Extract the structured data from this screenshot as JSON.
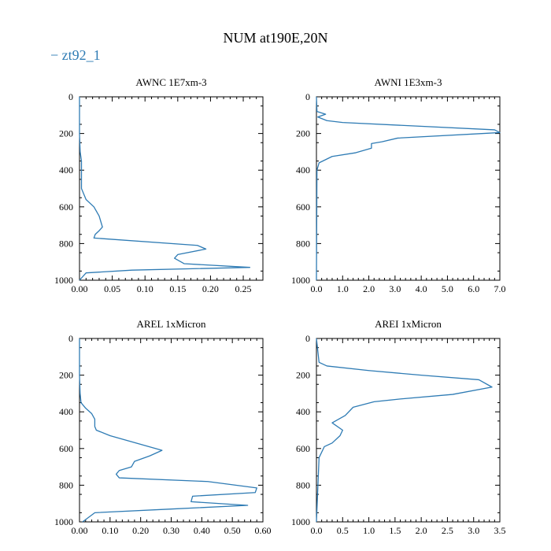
{
  "figure_title": "NUM at190E,20N",
  "legend": {
    "label": "zt92_1",
    "marker": "−",
    "color": "#2e7bb4"
  },
  "chart_data": [
    {
      "type": "line",
      "title": "AWNC  1E7xm-3",
      "xlim": [
        0,
        0.28
      ],
      "ylim": [
        1000,
        0
      ],
      "xticks": [
        0,
        0.05,
        0.1,
        0.15,
        0.2,
        0.25
      ],
      "xtick_labels": [
        "0.00",
        "0.05",
        "0.10",
        "0.15",
        "0.20",
        "0.25"
      ],
      "yticks": [
        0,
        200,
        400,
        600,
        800,
        1000
      ],
      "ytick_labels": [
        "0",
        "200",
        "400",
        "600",
        "800",
        "1000"
      ],
      "series": [
        {
          "name": "zt92_1",
          "x": [
            0,
            0,
            0.001,
            0.003,
            0.003,
            0.003,
            0.01,
            0.022,
            0.03,
            0.035,
            0.03,
            0.024,
            0.022,
            0.18,
            0.193,
            0.15,
            0.145,
            0.16,
            0.26,
            0.08,
            0.01,
            0
          ],
          "y": [
            0,
            200,
            300,
            350,
            400,
            500,
            560,
            600,
            650,
            710,
            730,
            750,
            770,
            810,
            830,
            860,
            880,
            910,
            930,
            945,
            960,
            1000
          ]
        }
      ]
    },
    {
      "type": "line",
      "title": "AWNI  1E3xm-3",
      "xlim": [
        0,
        7.0
      ],
      "ylim": [
        1000,
        0
      ],
      "xticks": [
        0,
        1,
        2,
        3,
        4,
        5,
        6,
        7
      ],
      "xtick_labels": [
        "0.0",
        "1.0",
        "2.0",
        "3.0",
        "4.0",
        "5.0",
        "6.0",
        "7.0"
      ],
      "yticks": [
        0,
        200,
        400,
        600,
        800,
        1000
      ],
      "ytick_labels": [
        "0",
        "200",
        "400",
        "600",
        "800",
        "1000"
      ],
      "series": [
        {
          "name": "zt92_1",
          "x": [
            0,
            0.02,
            0.35,
            0.05,
            0.4,
            1.0,
            6.8,
            7.0,
            3.1,
            2.5,
            2.1,
            2.1,
            1.5,
            0.6,
            0.1,
            0.02,
            0
          ],
          "y": [
            0,
            80,
            95,
            110,
            130,
            140,
            180,
            195,
            225,
            245,
            255,
            280,
            305,
            325,
            360,
            400,
            1000
          ]
        }
      ]
    },
    {
      "type": "line",
      "title": "AREL  1xMicron",
      "xlim": [
        0,
        0.6
      ],
      "ylim": [
        1000,
        0
      ],
      "xticks": [
        0,
        0.1,
        0.2,
        0.3,
        0.4,
        0.5,
        0.6
      ],
      "xtick_labels": [
        "0.00",
        "0.10",
        "0.20",
        "0.30",
        "0.40",
        "0.50",
        "0.60"
      ],
      "yticks": [
        0,
        200,
        400,
        600,
        800,
        1000
      ],
      "ytick_labels": [
        "0",
        "200",
        "400",
        "600",
        "800",
        "1000"
      ],
      "series": [
        {
          "name": "zt92_1",
          "x": [
            0,
            0,
            0.002,
            0.005,
            0.02,
            0.04,
            0.05,
            0.05,
            0.055,
            0.1,
            0.27,
            0.23,
            0.18,
            0.17,
            0.13,
            0.12,
            0.13,
            0.42,
            0.58,
            0.575,
            0.37,
            0.365,
            0.55,
            0.3,
            0.05,
            0.01
          ],
          "y": [
            0,
            200,
            300,
            350,
            380,
            410,
            440,
            480,
            500,
            530,
            610,
            640,
            670,
            700,
            720,
            740,
            760,
            780,
            815,
            840,
            860,
            890,
            910,
            930,
            950,
            1000
          ]
        }
      ]
    },
    {
      "type": "line",
      "title": "AREI  1xMicron",
      "xlim": [
        0,
        3.5
      ],
      "ylim": [
        1000,
        0
      ],
      "xticks": [
        0,
        0.5,
        1,
        1.5,
        2,
        2.5,
        3,
        3.5
      ],
      "xtick_labels": [
        "0.0",
        "0.5",
        "1.0",
        "1.5",
        "2.0",
        "2.5",
        "3.0",
        "3.5"
      ],
      "yticks": [
        0,
        200,
        400,
        600,
        800,
        1000
      ],
      "ytick_labels": [
        "0",
        "200",
        "400",
        "600",
        "800",
        "1000"
      ],
      "series": [
        {
          "name": "zt92_1",
          "x": [
            0,
            0.05,
            0.2,
            1.0,
            2.0,
            3.1,
            3.35,
            2.6,
            1.6,
            1.1,
            0.7,
            0.55,
            0.3,
            0.5,
            0.45,
            0.3,
            0.15,
            0.05,
            0
          ],
          "y": [
            0,
            130,
            150,
            175,
            200,
            225,
            265,
            305,
            330,
            345,
            375,
            420,
            460,
            500,
            530,
            570,
            590,
            650,
            1000
          ]
        }
      ]
    }
  ]
}
